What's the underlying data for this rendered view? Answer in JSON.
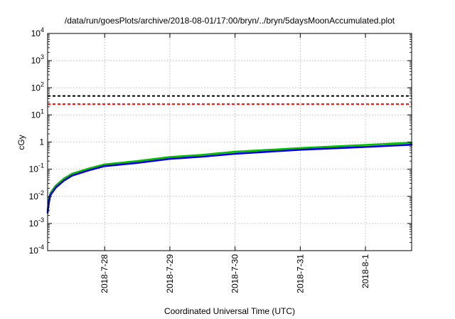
{
  "chart_data": {
    "type": "line",
    "title": "/data/run/goesPlots/archive/2018-08-01/17:00/bryn/../bryn/5daysMoonAccumulated.plot",
    "xlabel": "Coordinated Universal Time (UTC)",
    "ylabel": "cGy",
    "y_scale": "log",
    "ylim": [
      0.0001,
      10000
    ],
    "xlim": [
      "2018-07-27 03:00",
      "2018-08-01 17:00"
    ],
    "y_ticks": [
      {
        "base": "10",
        "exp": "-4"
      },
      {
        "base": "10",
        "exp": "-3"
      },
      {
        "base": "10",
        "exp": "-2"
      },
      {
        "base": "10",
        "exp": "-1"
      },
      {
        "base": "1",
        "exp": "0"
      },
      {
        "base": "10",
        "exp": "1"
      },
      {
        "base": "10",
        "exp": "2"
      },
      {
        "base": "10",
        "exp": "3"
      },
      {
        "base": "10",
        "exp": "4"
      }
    ],
    "x_ticks": [
      {
        "label": "2018-7-28",
        "x": "2018-07-28 00:00"
      },
      {
        "label": "2018-7-29",
        "x": "2018-07-29 00:00"
      },
      {
        "label": "2018-7-30",
        "x": "2018-07-30 00:00"
      },
      {
        "label": "2018-7-31",
        "x": "2018-07-31 00:00"
      },
      {
        "label": "2018-8-1",
        "x": "2018-08-01 00:00"
      }
    ],
    "grid": true,
    "reference_lines": [
      {
        "y": 50,
        "color": "#000000",
        "style": "dashed"
      },
      {
        "y": 25,
        "color": "#ff0000",
        "style": "dashed"
      }
    ],
    "series": [
      {
        "color": "#00c000",
        "x": [
          "2018-07-27 03:00",
          "2018-07-27 03:20",
          "2018-07-27 04:00",
          "2018-07-27 06:00",
          "2018-07-27 09:00",
          "2018-07-27 12:00",
          "2018-07-27 18:00",
          "2018-07-28 00:00",
          "2018-07-28 12:00",
          "2018-07-29 00:00",
          "2018-07-29 12:00",
          "2018-07-30 00:00",
          "2018-07-31 00:00",
          "2018-08-01 00:00",
          "2018-08-01 17:00"
        ],
        "y": [
          0.003,
          0.006,
          0.013,
          0.025,
          0.045,
          0.068,
          0.105,
          0.15,
          0.2,
          0.28,
          0.34,
          0.44,
          0.6,
          0.78,
          0.95
        ]
      },
      {
        "color": "#0000e0",
        "x": [
          "2018-07-27 03:00",
          "2018-07-27 03:20",
          "2018-07-27 04:00",
          "2018-07-27 06:00",
          "2018-07-27 09:00",
          "2018-07-27 12:00",
          "2018-07-27 18:00",
          "2018-07-28 00:00",
          "2018-07-28 12:00",
          "2018-07-29 00:00",
          "2018-07-29 12:00",
          "2018-07-30 00:00",
          "2018-07-31 00:00",
          "2018-08-01 00:00",
          "2018-08-01 17:00"
        ],
        "y": [
          0.0025,
          0.005,
          0.011,
          0.021,
          0.038,
          0.058,
          0.09,
          0.13,
          0.17,
          0.24,
          0.29,
          0.37,
          0.52,
          0.66,
          0.8
        ]
      }
    ]
  }
}
